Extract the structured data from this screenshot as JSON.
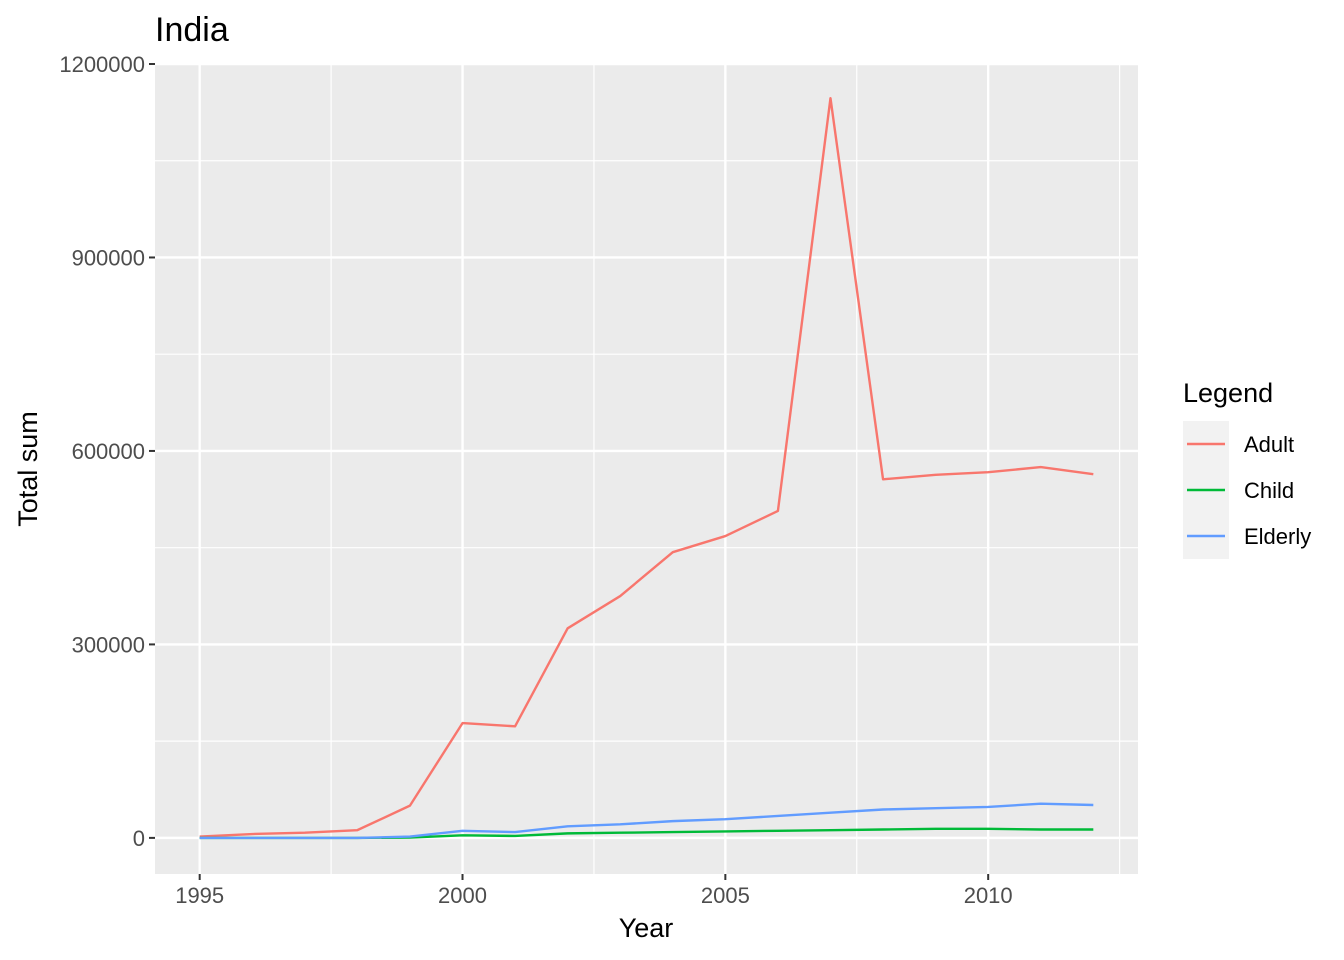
{
  "chart_data": {
    "type": "line",
    "title": "India",
    "xlabel": "Year",
    "ylabel": "Total sum",
    "x": [
      1995,
      1996,
      1997,
      1998,
      1999,
      2000,
      2001,
      2002,
      2003,
      2004,
      2005,
      2006,
      2007,
      2008,
      2009,
      2010,
      2011,
      2012
    ],
    "xlim": [
      1994.15,
      2012.85
    ],
    "ylim": [
      -56000,
      1200000
    ],
    "x_ticks": [
      1995,
      2000,
      2005,
      2010
    ],
    "x_tick_labels": [
      "1995",
      "2000",
      "2005",
      "2010"
    ],
    "y_ticks": [
      0,
      300000,
      600000,
      900000,
      1200000
    ],
    "y_tick_labels": [
      "0",
      "300000",
      "600000",
      "900000",
      "1200000"
    ],
    "grid": true,
    "legend": {
      "title": "Legend",
      "position": "right"
    },
    "series": [
      {
        "name": "Adult",
        "color": "#F8766D",
        "values": [
          2000,
          6000,
          8000,
          12000,
          50000,
          178000,
          173000,
          325000,
          375000,
          443000,
          468000,
          507000,
          1147000,
          556000,
          563000,
          567000,
          575000,
          564000
        ]
      },
      {
        "name": "Child",
        "color": "#00BA38",
        "values": [
          0,
          0,
          0,
          0,
          500,
          4000,
          3000,
          7000,
          8000,
          9000,
          10000,
          11000,
          12000,
          13000,
          14000,
          14000,
          13000,
          13000
        ]
      },
      {
        "name": "Elderly",
        "color": "#619CFF",
        "values": [
          0,
          0,
          0,
          0,
          2000,
          11000,
          9000,
          18000,
          21000,
          26000,
          29000,
          34000,
          39000,
          44000,
          46000,
          48000,
          53000,
          51000
        ]
      }
    ]
  }
}
